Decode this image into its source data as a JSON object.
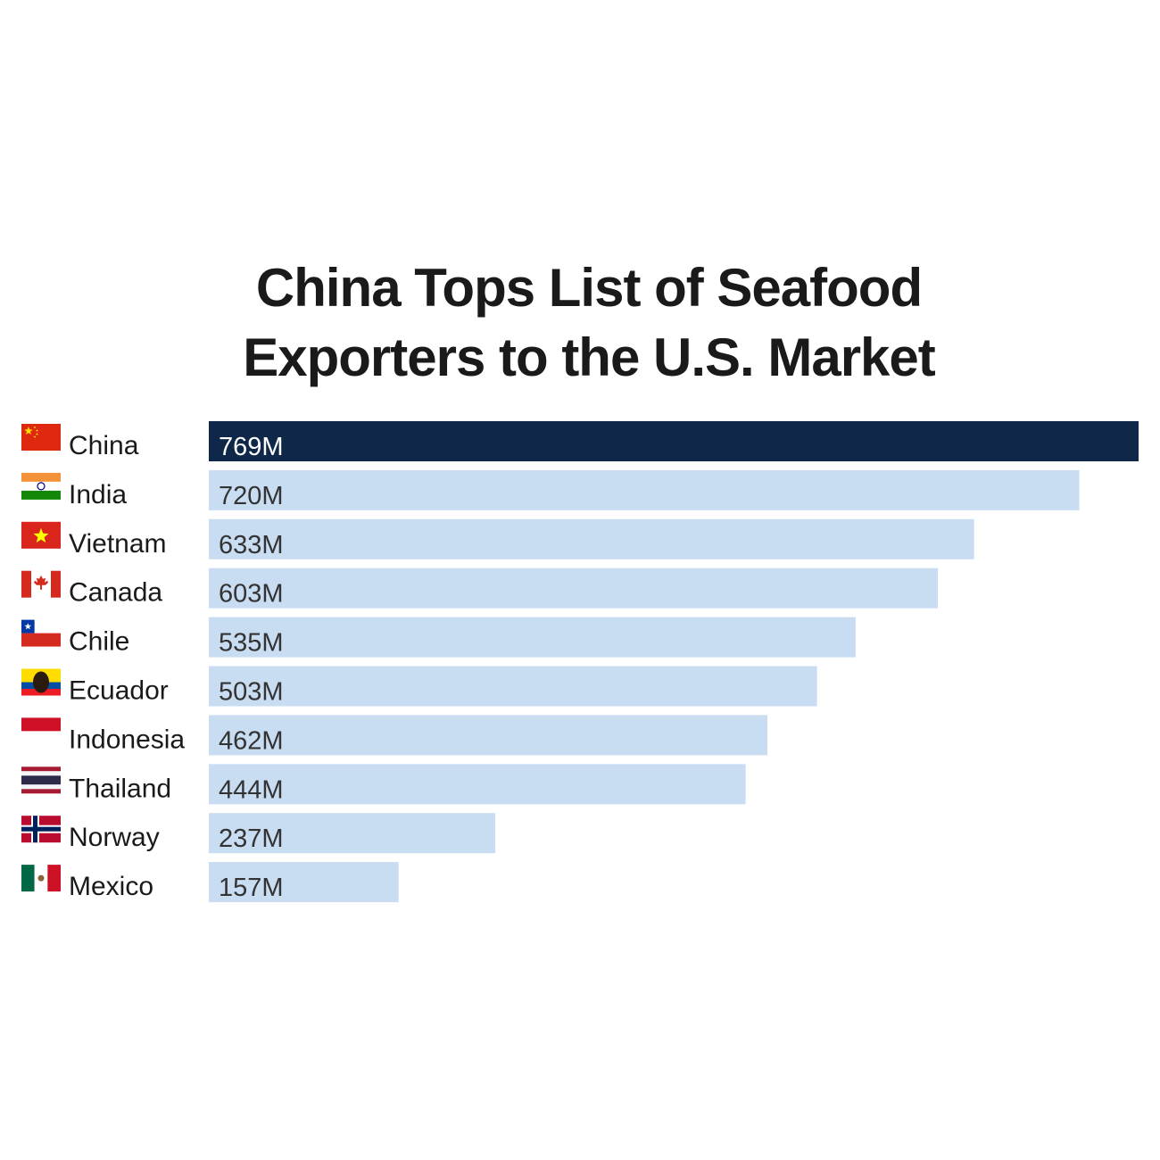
{
  "colors": {
    "highlight_bar": "#0f2749",
    "bar": "#c9ddf2",
    "highlight_text": "#ffffff",
    "text": "#333333"
  },
  "chart_data": {
    "type": "bar",
    "orientation": "horizontal",
    "title": "China Tops List of Seafood Exporters to the U.S. Market",
    "title_lines": [
      "China Tops List of Seafood",
      "Exporters to the U.S. Market"
    ],
    "categories": [
      "China",
      "India",
      "Vietnam",
      "Canada",
      "Chile",
      "Ecuador",
      "Indonesia",
      "Thailand",
      "Norway",
      "Mexico"
    ],
    "values": [
      769,
      720,
      633,
      603,
      535,
      503,
      462,
      444,
      237,
      157
    ],
    "value_labels": [
      "769M",
      "720M",
      "633M",
      "603M",
      "535M",
      "503M",
      "462M",
      "444M",
      "237M",
      "157M"
    ],
    "flags": [
      "china-flag-icon",
      "india-flag-icon",
      "vietnam-flag-icon",
      "canada-flag-icon",
      "chile-flag-icon",
      "ecuador-flag-icon",
      "indonesia-flag-icon",
      "thailand-flag-icon",
      "norway-flag-icon",
      "mexico-flag-icon"
    ],
    "highlight": "China",
    "xlabel": "",
    "ylabel": "",
    "xlim": [
      0,
      769
    ],
    "grid": false,
    "legend": "none"
  }
}
